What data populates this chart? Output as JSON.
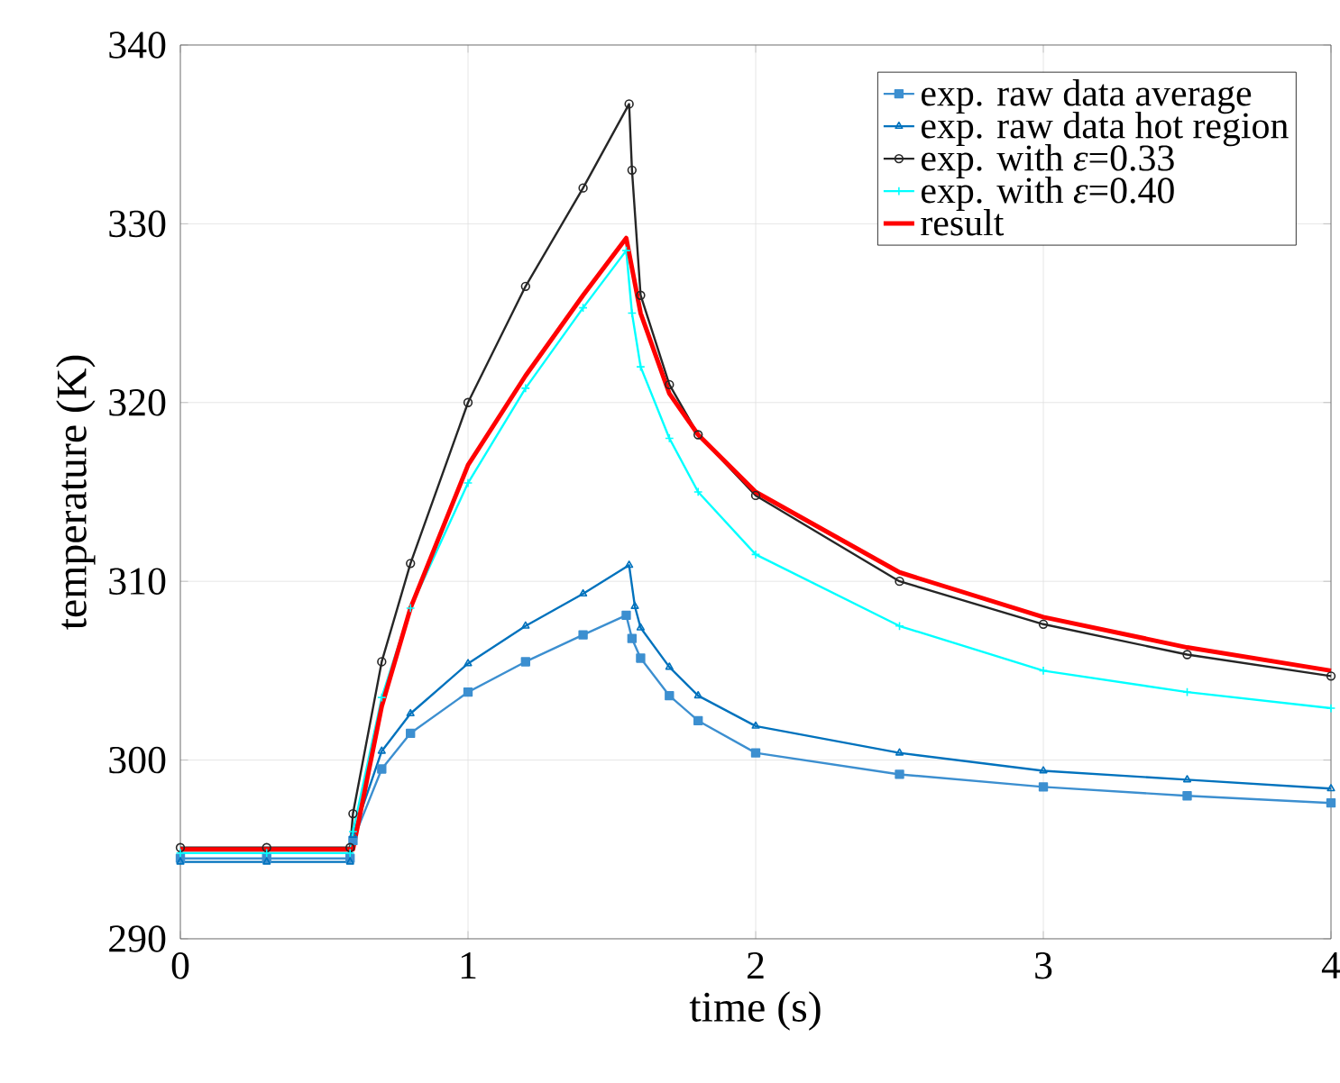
{
  "chart_data": {
    "type": "line",
    "xlabel": "time (s)",
    "ylabel": "temperature (K)",
    "xlim": [
      0,
      4
    ],
    "ylim": [
      290,
      340
    ],
    "xticks": [
      0,
      1,
      2,
      3,
      4
    ],
    "yticks": [
      290,
      300,
      310,
      320,
      330,
      340
    ],
    "grid": true,
    "legend": "top right",
    "series": [
      {
        "name": "exp. raw data average",
        "color": "#3c8fd0",
        "marker": "square",
        "x": [
          0,
          0.3,
          0.59,
          0.6,
          0.7,
          0.8,
          1.0,
          1.2,
          1.4,
          1.55,
          1.57,
          1.6,
          1.7,
          1.8,
          2.0,
          2.5,
          3.0,
          3.5,
          4.0
        ],
        "values": [
          294.5,
          294.5,
          294.5,
          295.5,
          299.5,
          301.5,
          303.8,
          305.5,
          307.0,
          308.1,
          306.8,
          305.7,
          303.6,
          302.2,
          300.4,
          299.2,
          298.5,
          298.0,
          297.6
        ]
      },
      {
        "name": "exp. raw data hot region",
        "color": "#0072bd",
        "marker": "triangle",
        "x": [
          0,
          0.3,
          0.59,
          0.6,
          0.7,
          0.8,
          1.0,
          1.2,
          1.4,
          1.56,
          1.58,
          1.6,
          1.7,
          1.8,
          2.0,
          2.5,
          3.0,
          3.5,
          4.0
        ],
        "values": [
          294.3,
          294.3,
          294.3,
          295.8,
          300.5,
          302.6,
          305.4,
          307.5,
          309.3,
          310.9,
          308.6,
          307.4,
          305.2,
          303.6,
          301.9,
          300.4,
          299.4,
          298.9,
          298.4
        ]
      },
      {
        "name": "exp. with *ε*=0.33",
        "color": "#262626",
        "marker": "circle",
        "x": [
          0,
          0.3,
          0.59,
          0.6,
          0.7,
          0.8,
          1.0,
          1.2,
          1.4,
          1.56,
          1.57,
          1.6,
          1.7,
          1.8,
          2.0,
          2.5,
          3.0,
          3.5,
          4.0
        ],
        "values": [
          295.1,
          295.1,
          295.1,
          297.0,
          305.5,
          311.0,
          320.0,
          326.5,
          332.0,
          336.7,
          333.0,
          326.0,
          321.0,
          318.2,
          314.8,
          310.0,
          307.6,
          305.9,
          304.7
        ]
      },
      {
        "name": "exp. with *ε*=0.40",
        "color": "#00ffff",
        "marker": "cross",
        "x": [
          0,
          0.3,
          0.59,
          0.6,
          0.7,
          0.8,
          1.0,
          1.2,
          1.4,
          1.55,
          1.57,
          1.6,
          1.7,
          1.8,
          2.0,
          2.5,
          3.0,
          3.5,
          4.0
        ],
        "values": [
          294.8,
          294.8,
          294.8,
          296.0,
          303.5,
          308.5,
          315.5,
          320.8,
          325.3,
          328.5,
          325.0,
          322.0,
          318.0,
          315.0,
          311.5,
          307.5,
          305.0,
          303.8,
          302.9
        ]
      },
      {
        "name": "result",
        "color": "#ff0000",
        "marker": "none",
        "x": [
          0,
          0.3,
          0.6,
          0.7,
          0.8,
          1.0,
          1.2,
          1.4,
          1.55,
          1.6,
          1.7,
          1.8,
          2.0,
          2.5,
          3.0,
          3.5,
          4.0
        ],
        "values": [
          295.0,
          295.0,
          295.0,
          303.0,
          308.5,
          316.5,
          321.5,
          326.0,
          329.2,
          325.0,
          320.5,
          318.2,
          315.0,
          310.5,
          308.0,
          306.3,
          305.0
        ]
      }
    ]
  }
}
